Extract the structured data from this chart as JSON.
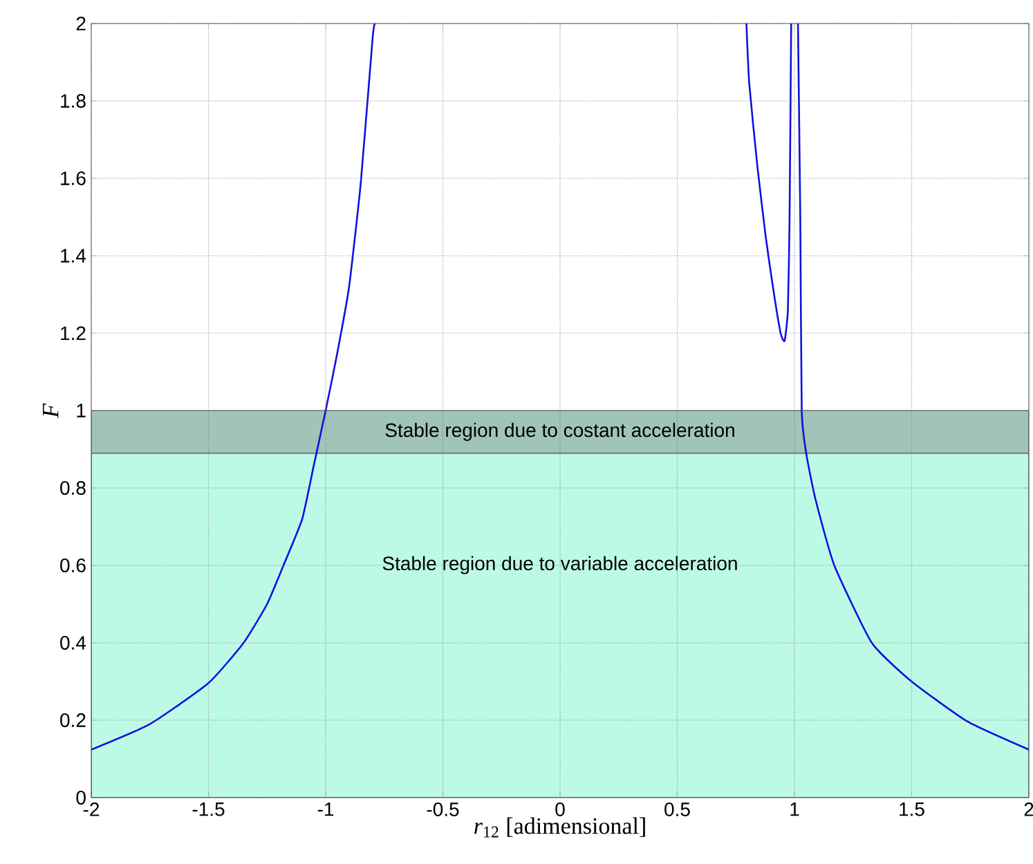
{
  "chart_data": {
    "type": "line",
    "xlabel": "*r*$_{12}$ [adimensional]",
    "ylabel": "*F*",
    "xlim": [
      -2,
      2
    ],
    "ylim": [
      0,
      2
    ],
    "xticks": [
      -2,
      -1.5,
      -1,
      -0.5,
      0,
      0.5,
      1,
      1.5,
      2
    ],
    "yticks": [
      0,
      0.2,
      0.4,
      0.6,
      0.8,
      1,
      1.2,
      1.4,
      1.6,
      1.8,
      2
    ],
    "grid": true,
    "line_style": "solid",
    "marker": "none",
    "series": [
      {
        "color": "#1010e0",
        "x": [
          -2,
          -1.75,
          -1.5,
          -1.35,
          -1.25,
          -1.18,
          -1.1,
          -1.05,
          -1.0,
          -0.95,
          -0.9,
          -0.85,
          -0.8,
          -0.79
        ],
        "values": [
          0.124,
          0.19,
          0.296,
          0.4,
          0.5,
          0.6,
          0.72,
          0.86,
          1.0,
          1.15,
          1.32,
          1.59,
          1.96,
          2.0
        ]
      },
      {
        "color": "#1010e0",
        "x": [
          0.795,
          0.807,
          0.842,
          0.878,
          0.913,
          0.941,
          0.958,
          0.972,
          0.979,
          0.986
        ],
        "values": [
          2.0,
          1.846,
          1.63,
          1.446,
          1.3,
          1.2,
          1.18,
          1.26,
          1.49,
          2.0
        ]
      },
      {
        "color": "#1010e0",
        "x": [
          1.015,
          1.025,
          1.031,
          1.05,
          1.09,
          1.17,
          1.33,
          1.5,
          1.74,
          2.0
        ],
        "values": [
          2.0,
          1.49,
          1.0,
          0.89,
          0.77,
          0.6,
          0.4,
          0.3,
          0.196,
          0.124
        ]
      }
    ],
    "bands": [
      {
        "axis": "y",
        "from": 0,
        "to": 0.89,
        "label": "Stable region due to variable acceleration",
        "color": "#bdfae6"
      },
      {
        "axis": "y",
        "from": 0.89,
        "to": 1,
        "label": "Stable region due to costant acceleration",
        "color": "#a0c4b8"
      }
    ]
  }
}
